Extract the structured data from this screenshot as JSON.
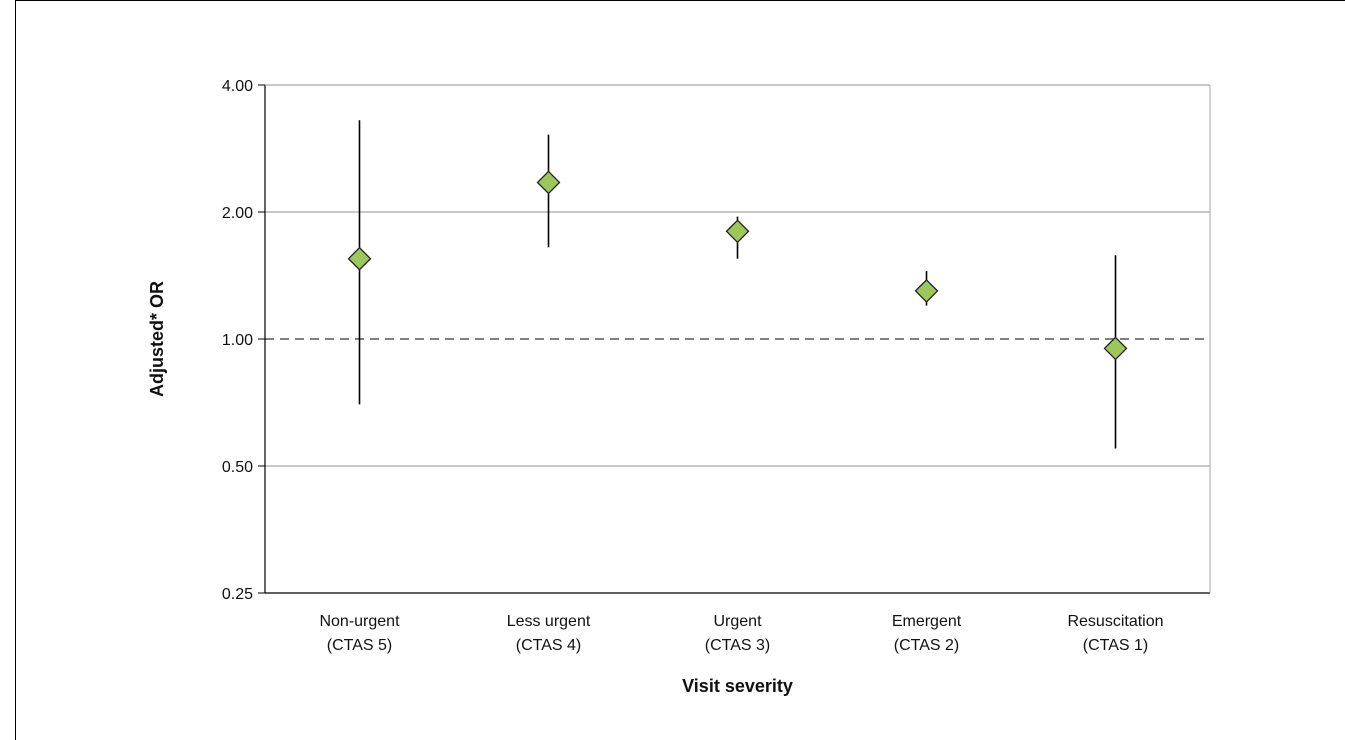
{
  "chart_data": {
    "type": "scatter",
    "subtype": "point-estimate with 95% CI error bars",
    "title": "",
    "xlabel": "Visit severity",
    "ylabel": "Adjusted* OR",
    "yscale": "log2",
    "ylim": [
      0.25,
      4.0
    ],
    "yticks": [
      "0.25",
      "0.50",
      "1.00",
      "2.00",
      "4.00"
    ],
    "reference_line": 1.0,
    "grid": "horizontal major gridlines",
    "categories": [
      {
        "line1": "Non-urgent",
        "line2": "(CTAS 5)"
      },
      {
        "line1": "Less urgent",
        "line2": "(CTAS 4)"
      },
      {
        "line1": "Urgent",
        "line2": "(CTAS 3)"
      },
      {
        "line1": "Emergent",
        "line2": "(CTAS 2)"
      },
      {
        "line1": "Resuscitation",
        "line2": "(CTAS 1)"
      }
    ],
    "points": [
      {
        "or": 1.55,
        "lower": 0.7,
        "upper": 3.3
      },
      {
        "or": 2.35,
        "lower": 1.65,
        "upper": 3.05
      },
      {
        "or": 1.8,
        "lower": 1.55,
        "upper": 1.95
      },
      {
        "or": 1.3,
        "lower": 1.2,
        "upper": 1.45
      },
      {
        "or": 0.95,
        "lower": 0.55,
        "upper": 1.58
      }
    ],
    "marker_color": "#9dc75a",
    "marker_stroke": "#222222"
  }
}
